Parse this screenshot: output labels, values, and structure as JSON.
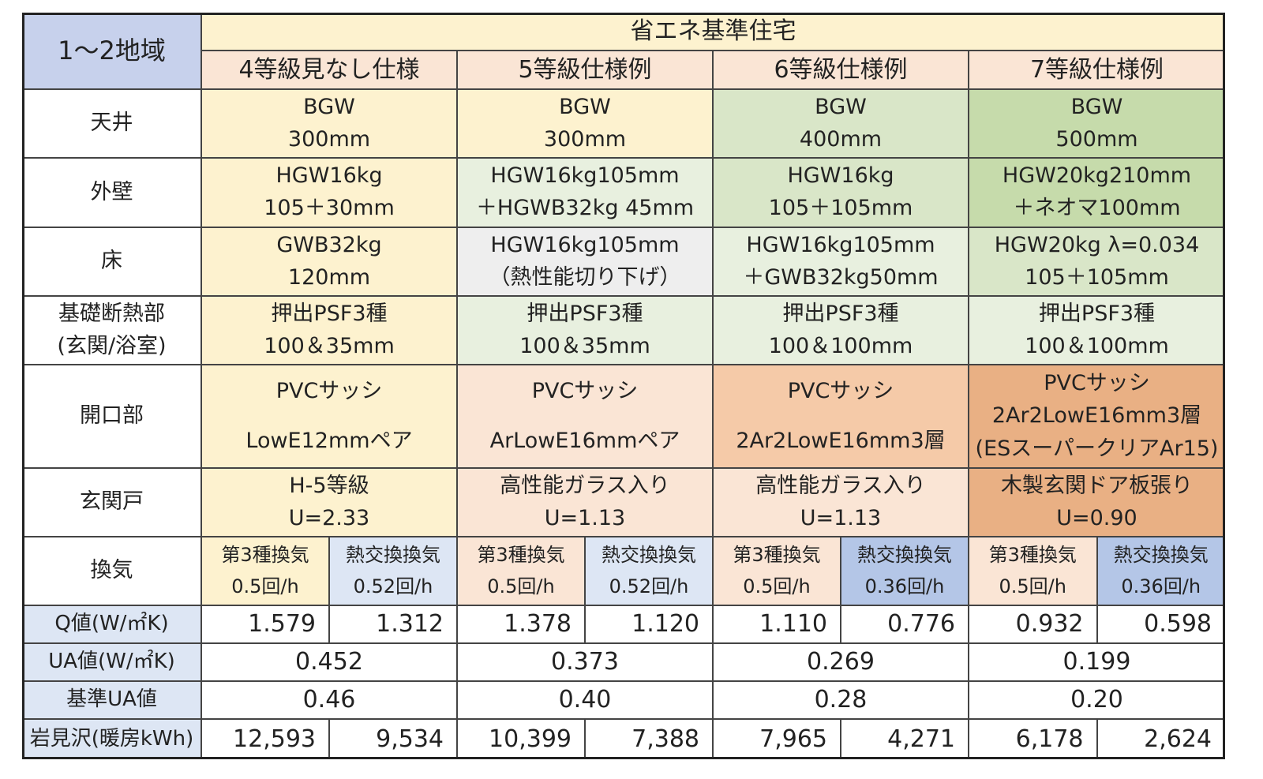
{
  "table": {
    "corner": "1〜2地域",
    "group_header": "省エネ基準住宅",
    "columns": [
      "4等級見なし仕様",
      "5等級仕様例",
      "6等級仕様例",
      "7等級仕様例"
    ],
    "rows": [
      {
        "label": [
          "天井"
        ],
        "cells": [
          [
            "BGW",
            "300mm"
          ],
          [
            "BGW",
            "300mm"
          ],
          [
            "BGW",
            "400mm"
          ],
          [
            "BGW",
            "500mm"
          ]
        ]
      },
      {
        "label": [
          "外壁"
        ],
        "cells": [
          [
            "HGW16kg",
            "105＋30mm"
          ],
          [
            "HGW16kg105mm",
            "＋HGWB32kg 45mm"
          ],
          [
            "HGW16kg",
            "105＋105mm"
          ],
          [
            "HGW20kg210mm",
            "＋ネオマ100mm"
          ]
        ]
      },
      {
        "label": [
          "床"
        ],
        "cells": [
          [
            "GWB32kg",
            "120mm"
          ],
          [
            "HGW16kg105mm",
            "（熱性能切り下げ）"
          ],
          [
            "HGW16kg105mm",
            "＋GWB32kg50mm"
          ],
          [
            "HGW20kg λ=0.034",
            "105＋105mm"
          ]
        ]
      },
      {
        "label": [
          "基礎断熱部",
          "(玄関/浴室)"
        ],
        "cells": [
          [
            "押出PSF3種",
            "100＆35mm"
          ],
          [
            "押出PSF3種",
            "100＆35mm"
          ],
          [
            "押出PSF3種",
            "100＆100mm"
          ],
          [
            "押出PSF3種",
            "100＆100mm"
          ]
        ]
      },
      {
        "label": [
          "開口部"
        ],
        "cells": [
          [
            "PVCサッシ",
            "LowE12mmペア"
          ],
          [
            "PVCサッシ",
            "ArLowE16mmペア"
          ],
          [
            "PVCサッシ",
            "2Ar2LowE16mm3層"
          ],
          [
            "PVCサッシ",
            "2Ar2LowE16mm3層",
            "(ESスーパークリアAr15)"
          ]
        ]
      },
      {
        "label": [
          "玄関戸"
        ],
        "cells": [
          [
            "H-5等級",
            "U=2.33"
          ],
          [
            "高性能ガラス入り",
            "U=1.13"
          ],
          [
            "高性能ガラス入り",
            "U=1.13"
          ],
          [
            "木製玄関ドア板張り",
            "U=0.90"
          ]
        ]
      }
    ],
    "ventilation": {
      "label": "換気",
      "cells": [
        [
          "第3種換気",
          "0.5回/h"
        ],
        [
          "熱交換換気",
          "0.52回/h"
        ],
        [
          "第3種換気",
          "0.5回/h"
        ],
        [
          "熱交換換気",
          "0.52回/h"
        ],
        [
          "第3種換気",
          "0.5回/h"
        ],
        [
          "熱交換換気",
          "0.36回/h"
        ],
        [
          "第3種換気",
          "0.5回/h"
        ],
        [
          "熱交換換気",
          "0.36回/h"
        ]
      ]
    },
    "q_value": {
      "label": "Q値(W/㎡K)",
      "values": [
        "1.579",
        "1.312",
        "1.378",
        "1.120",
        "1.110",
        "0.776",
        "0.932",
        "0.598"
      ]
    },
    "ua_value": {
      "label": "UA値(W/㎡K)",
      "values": [
        "0.452",
        "0.373",
        "0.269",
        "0.199"
      ]
    },
    "standard_ua": {
      "label": "基準UA値",
      "values": [
        "0.46",
        "0.40",
        "0.28",
        "0.20"
      ]
    },
    "heating": {
      "label": "岩見沢(暖房kWh)",
      "values": [
        "12,593",
        "9,534",
        "10,399",
        "7,388",
        "7,965",
        "4,271",
        "6,178",
        "2,624"
      ]
    }
  }
}
